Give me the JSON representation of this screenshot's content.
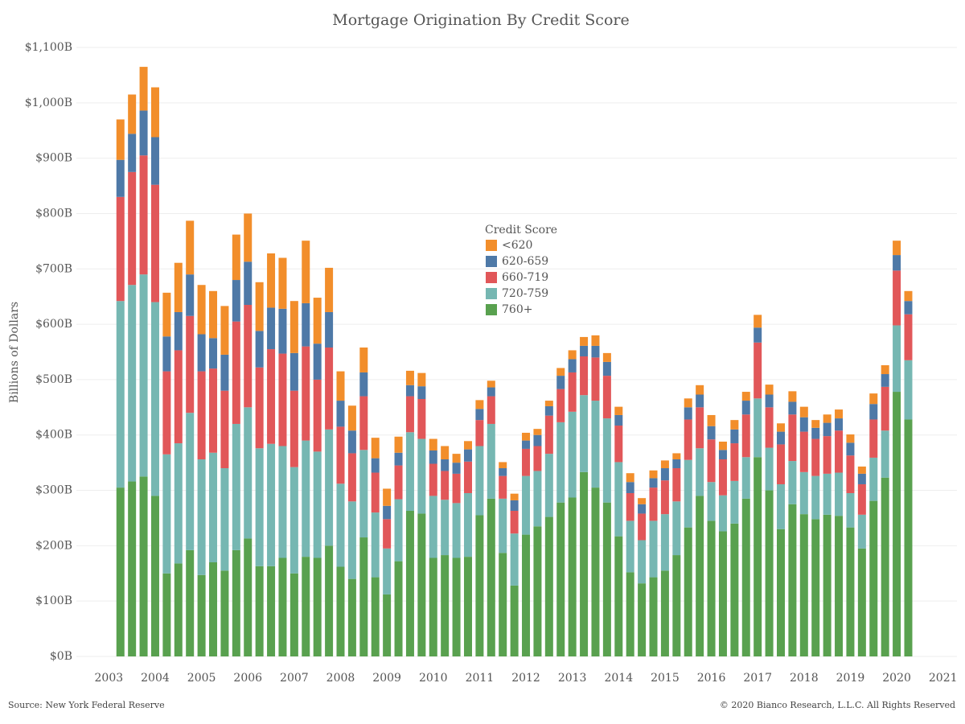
{
  "chart_data": {
    "type": "stacked_bar",
    "title": "Mortgage Origination By Credit Score",
    "y_label": "Billions of Dollars",
    "legend_title": "Credit Score",
    "source": "Source: New York Federal Reserve",
    "copyright": "© 2020 Bianco Research, L.L.C. All Rights Reserved",
    "grid": true,
    "x": [
      2003.25,
      2003.5,
      2003.75,
      2004,
      2004.25,
      2004.5,
      2004.75,
      2005,
      2005.25,
      2005.5,
      2005.75,
      2006,
      2006.25,
      2006.5,
      2006.75,
      2007,
      2007.25,
      2007.5,
      2007.75,
      2008,
      2008.25,
      2008.5,
      2008.75,
      2009,
      2009.25,
      2009.5,
      2009.75,
      2010,
      2010.25,
      2010.5,
      2010.75,
      2011,
      2011.25,
      2011.5,
      2011.75,
      2012,
      2012.25,
      2012.5,
      2012.75,
      2013,
      2013.25,
      2013.5,
      2013.75,
      2014,
      2014.25,
      2014.5,
      2014.75,
      2015,
      2015.25,
      2015.5,
      2015.75,
      2016,
      2016.25,
      2016.5,
      2016.75,
      2017,
      2017.25,
      2017.5,
      2017.75,
      2018,
      2018.25,
      2018.5,
      2018.75,
      2019,
      2019.25,
      2019.5,
      2019.75,
      2020,
      2020.25
    ],
    "xlim": [
      2002.3,
      2021.3
    ],
    "xticks": [
      2003,
      2004,
      2005,
      2006,
      2007,
      2008,
      2009,
      2010,
      2011,
      2012,
      2013,
      2014,
      2015,
      2016,
      2017,
      2018,
      2019,
      2020,
      2021
    ],
    "ylim": [
      0,
      1100
    ],
    "yticks": [
      {
        "value": 0,
        "label": "$0B"
      },
      {
        "value": 100,
        "label": "$100B"
      },
      {
        "value": 200,
        "label": "$200B"
      },
      {
        "value": 300,
        "label": "$300B"
      },
      {
        "value": 400,
        "label": "$400B"
      },
      {
        "value": 500,
        "label": "$500B"
      },
      {
        "value": 600,
        "label": "$600B"
      },
      {
        "value": 700,
        "label": "$700B"
      },
      {
        "value": 800,
        "label": "$800B"
      },
      {
        "value": 900,
        "label": "$900B"
      },
      {
        "value": 1000,
        "label": "$1,000B"
      },
      {
        "value": 1100,
        "label": "$1,100B"
      }
    ],
    "series": [
      {
        "name": "<620",
        "color": "#f28e2b",
        "values": [
          73,
          71,
          79,
          90,
          79,
          89,
          97,
          89,
          85,
          88,
          82,
          87,
          88,
          98,
          92,
          94,
          113,
          83,
          80,
          53,
          45,
          45,
          37,
          31,
          29,
          26,
          24,
          21,
          24,
          16,
          15,
          16,
          12,
          11,
          12,
          14,
          11,
          10,
          14,
          16,
          16,
          19,
          16,
          15,
          16,
          11,
          14,
          14,
          11,
          16,
          17,
          20,
          15,
          17,
          16,
          23,
          18,
          15,
          19,
          19,
          14,
          15,
          16,
          15,
          13,
          19,
          16,
          26,
          18
        ]
      },
      {
        "name": "620-659",
        "color": "#4e79a7",
        "values": [
          67,
          69,
          81,
          86,
          63,
          69,
          75,
          67,
          55,
          65,
          75,
          78,
          66,
          75,
          81,
          68,
          78,
          65,
          64,
          47,
          41,
          43,
          26,
          24,
          23,
          20,
          23,
          24,
          21,
          20,
          22,
          20,
          16,
          14,
          19,
          15,
          20,
          17,
          24,
          24,
          19,
          21,
          25,
          19,
          20,
          17,
          17,
          22,
          16,
          22,
          23,
          24,
          17,
          25,
          25,
          27,
          23,
          23,
          23,
          26,
          20,
          24,
          22,
          23,
          19,
          28,
          23,
          28,
          24
        ]
      },
      {
        "name": "660-719",
        "color": "#e15759",
        "values": [
          188,
          204,
          215,
          212,
          150,
          168,
          175,
          159,
          152,
          140,
          185,
          185,
          146,
          171,
          167,
          138,
          170,
          130,
          148,
          103,
          87,
          97,
          72,
          53,
          61,
          65,
          72,
          58,
          52,
          53,
          57,
          47,
          50,
          41,
          41,
          49,
          45,
          69,
          60,
          71,
          70,
          78,
          77,
          66,
          50,
          48,
          60,
          61,
          60,
          73,
          74,
          77,
          65,
          68,
          77,
          101,
          73,
          72,
          84,
          73,
          67,
          68,
          76,
          68,
          55,
          69,
          79,
          99,
          83
        ]
      },
      {
        "name": "720-759",
        "color": "#76b7b2",
        "values": [
          337,
          355,
          365,
          350,
          215,
          217,
          248,
          209,
          198,
          185,
          228,
          237,
          213,
          221,
          202,
          192,
          210,
          192,
          210,
          150,
          140,
          158,
          117,
          83,
          112,
          142,
          135,
          112,
          100,
          99,
          115,
          125,
          135,
          98,
          94,
          106,
          100,
          114,
          145,
          155,
          139,
          157,
          152,
          134,
          93,
          78,
          102,
          102,
          97,
          122,
          86,
          70,
          65,
          77,
          75,
          106,
          77,
          81,
          78,
          76,
          78,
          74,
          78,
          62,
          61,
          78,
          85,
          120,
          107
        ]
      },
      {
        "name": "760+",
        "color": "#59a14f",
        "values": [
          305,
          316,
          325,
          290,
          150,
          168,
          192,
          147,
          170,
          155,
          192,
          213,
          163,
          163,
          178,
          150,
          180,
          178,
          200,
          162,
          140,
          215,
          143,
          112,
          172,
          263,
          258,
          178,
          183,
          178,
          180,
          255,
          285,
          187,
          128,
          220,
          235,
          252,
          278,
          287,
          333,
          305,
          278,
          217,
          152,
          132,
          143,
          155,
          183,
          233,
          290,
          245,
          226,
          240,
          285,
          360,
          300,
          230,
          275,
          257,
          248,
          256,
          254,
          233,
          195,
          281,
          323,
          478,
          428
        ]
      }
    ]
  }
}
